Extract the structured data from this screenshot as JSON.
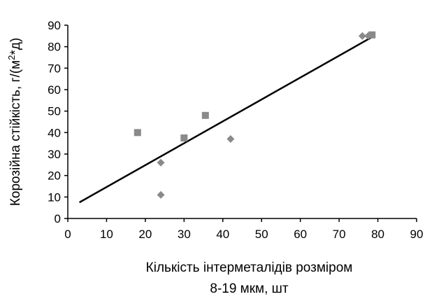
{
  "chart_data": {
    "type": "scatter",
    "title": "",
    "xlabel_lines": [
      "Кількість інтерметалідів розміром",
      "8-19 мкм, шт"
    ],
    "ylabel": "Корозійна стійкість, г/(м",
    "ylabel_sup": "2",
    "ylabel_tail": "*д)",
    "xlim": [
      0,
      90
    ],
    "ylim": [
      0,
      90
    ],
    "xticks": [
      0,
      10,
      20,
      30,
      40,
      50,
      60,
      70,
      80,
      90
    ],
    "yticks": [
      0,
      10,
      20,
      30,
      40,
      50,
      60,
      70,
      80,
      90
    ],
    "grid": false,
    "legend": "none",
    "series": [
      {
        "marker": "diamond",
        "points": [
          {
            "x": 24,
            "y": 11
          },
          {
            "x": 24,
            "y": 26
          },
          {
            "x": 42,
            "y": 37
          },
          {
            "x": 76,
            "y": 85
          },
          {
            "x": 77.5,
            "y": 85
          }
        ]
      },
      {
        "marker": "square",
        "points": [
          {
            "x": 18,
            "y": 40
          },
          {
            "x": 30,
            "y": 37.5
          },
          {
            "x": 35.5,
            "y": 48
          },
          {
            "x": 78.5,
            "y": 85.5
          }
        ]
      }
    ],
    "trendline": {
      "from": {
        "x": 3,
        "y": 7.5
      },
      "to": {
        "x": 79,
        "y": 85
      }
    },
    "colors": {
      "marker": "#8a8a8a",
      "line": "#000000",
      "axis": "#000000"
    }
  }
}
